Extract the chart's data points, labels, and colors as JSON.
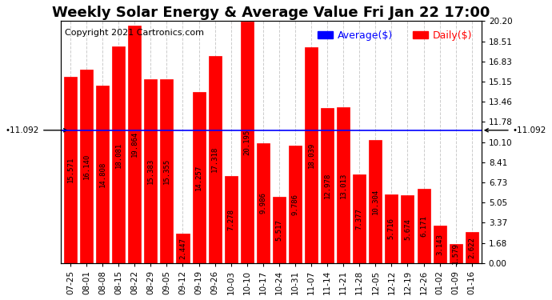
{
  "title": "Weekly Solar Energy & Average Value Fri Jan 22 17:00",
  "copyright": "Copyright 2021 Cartronics.com",
  "legend_avg": "Average($)",
  "legend_daily": "Daily($)",
  "average_line": 11.092,
  "average_label": "11.092",
  "categories": [
    "07-25",
    "08-01",
    "08-08",
    "08-15",
    "08-22",
    "08-29",
    "09-05",
    "09-12",
    "09-19",
    "09-26",
    "10-03",
    "10-10",
    "10-17",
    "10-24",
    "10-31",
    "11-07",
    "11-14",
    "11-21",
    "11-28",
    "12-05",
    "12-12",
    "12-19",
    "12-26",
    "01-02",
    "01-09",
    "01-16"
  ],
  "values": [
    15.571,
    16.14,
    14.808,
    18.081,
    19.864,
    15.383,
    15.355,
    2.447,
    14.257,
    17.318,
    7.278,
    20.195,
    9.986,
    5.517,
    9.786,
    18.039,
    12.978,
    13.013,
    7.377,
    10.304,
    5.716,
    5.674,
    6.171,
    3.143,
    1.579,
    2.622
  ],
  "bar_color": "#ff0000",
  "bar_edgecolor": "#ff0000",
  "avg_line_color": "#0000ff",
  "text_color_bars": "#000000",
  "ylim": [
    0.0,
    20.2
  ],
  "yticks_right": [
    0.0,
    1.68,
    3.37,
    5.05,
    6.73,
    8.41,
    10.1,
    11.78,
    13.46,
    15.15,
    16.83,
    18.51,
    20.2
  ],
  "background_color": "#ffffff",
  "grid_color": "#cccccc",
  "title_fontsize": 13,
  "copyright_fontsize": 8,
  "bar_text_fontsize": 6.5,
  "tick_fontsize": 7.5,
  "legend_fontsize": 9
}
